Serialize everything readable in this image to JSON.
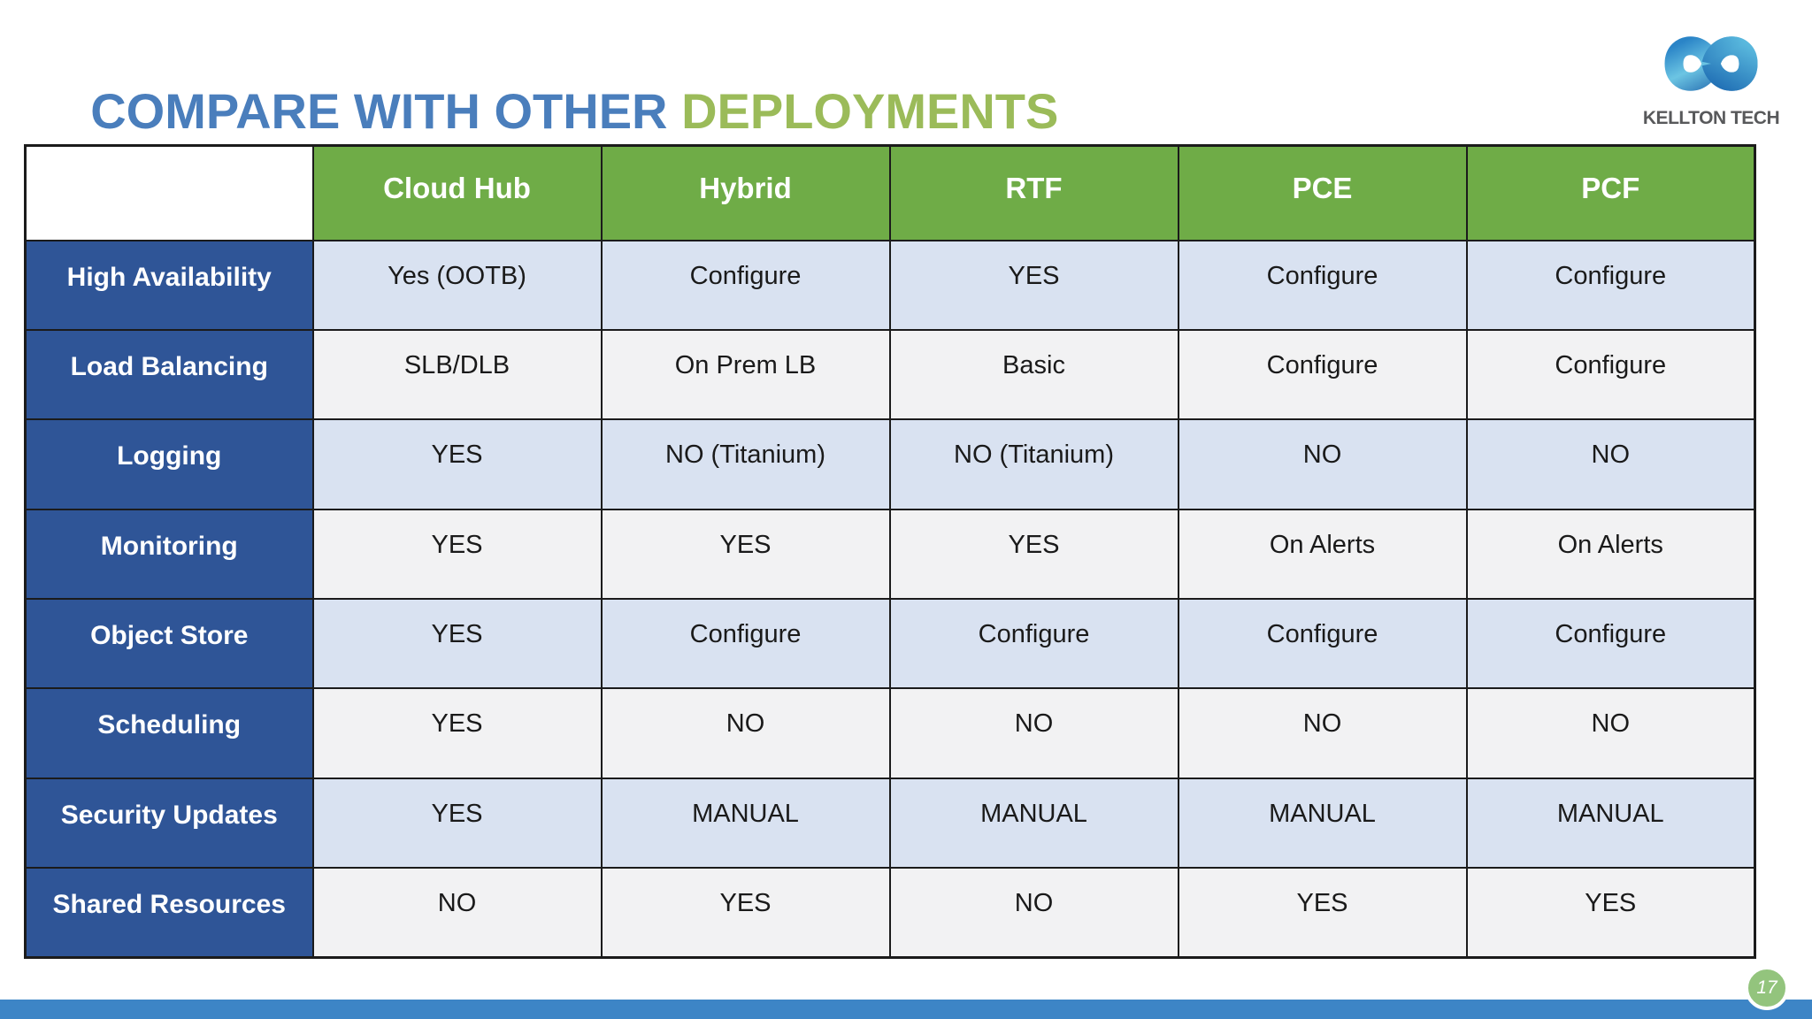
{
  "slide": {
    "title_part1": "COMPARE WITH OTHER ",
    "title_part2": "DEPLOYMENTS",
    "page_number": "17"
  },
  "logo": {
    "company": "KELLTON TECH",
    "icon": "infinity-icon"
  },
  "colors": {
    "title_blue": "#4A7EBC",
    "title_green": "#9BBB59",
    "header_green": "#6FAC47",
    "label_blue": "#2F5597",
    "row_alt_blue": "#D9E2F1",
    "row_alt_gray": "#F2F2F3",
    "footer_bar_blue": "#3D85C6",
    "page_badge_green": "#93C47D",
    "border_black": "#1b1b1b"
  },
  "table": {
    "columns": [
      "",
      "Cloud Hub",
      "Hybrid",
      "RTF",
      "PCE",
      "PCF"
    ],
    "rows": [
      {
        "label": "High Availability",
        "values": [
          "Yes (OOTB)",
          "Configure",
          "YES",
          "Configure",
          "Configure"
        ]
      },
      {
        "label": "Load Balancing",
        "values": [
          "SLB/DLB",
          "On Prem LB",
          "Basic",
          "Configure",
          "Configure"
        ]
      },
      {
        "label": "Logging",
        "values": [
          "YES",
          "NO (Titanium)",
          "NO (Titanium)",
          "NO",
          "NO"
        ]
      },
      {
        "label": "Monitoring",
        "values": [
          "YES",
          "YES",
          "YES",
          "On Alerts",
          "On Alerts"
        ]
      },
      {
        "label": "Object Store",
        "values": [
          "YES",
          "Configure",
          "Configure",
          "Configure",
          "Configure"
        ]
      },
      {
        "label": "Scheduling",
        "values": [
          "YES",
          "NO",
          "NO",
          "NO",
          "NO"
        ]
      },
      {
        "label": "Security Updates",
        "values": [
          "YES",
          "MANUAL",
          "MANUAL",
          "MANUAL",
          "MANUAL"
        ]
      },
      {
        "label": "Shared Resources",
        "values": [
          "NO",
          "YES",
          "NO",
          "YES",
          "YES"
        ]
      }
    ]
  }
}
